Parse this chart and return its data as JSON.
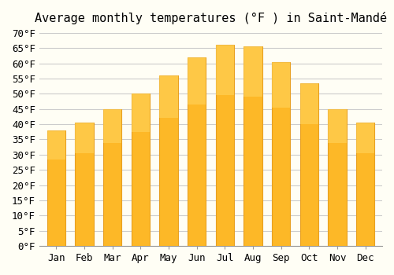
{
  "title": "Average monthly temperatures (°F ) in Saint-Mandé",
  "months": [
    "Jan",
    "Feb",
    "Mar",
    "Apr",
    "May",
    "Jun",
    "Jul",
    "Aug",
    "Sep",
    "Oct",
    "Nov",
    "Dec"
  ],
  "values": [
    38,
    40.5,
    45,
    50,
    56,
    62,
    66,
    65.5,
    60.5,
    53.5,
    45,
    40.5
  ],
  "bar_color": "#FDB827",
  "bar_edge_color": "#E8A020",
  "ylim": [
    0,
    70
  ],
  "yticks": [
    0,
    5,
    10,
    15,
    20,
    25,
    30,
    35,
    40,
    45,
    50,
    55,
    60,
    65,
    70
  ],
  "background_color": "#FFFEF5",
  "grid_color": "#CCCCCC",
  "title_fontsize": 11,
  "tick_fontsize": 9
}
